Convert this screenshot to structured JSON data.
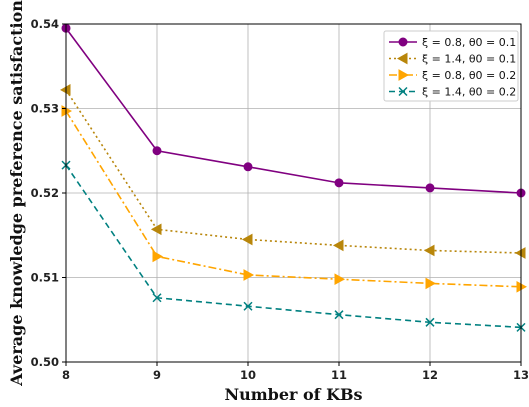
{
  "chart_data": {
    "type": "line",
    "xlabel": "Number of KBs",
    "ylabel": "Average knowledge preference satisfaction",
    "x": [
      8,
      9,
      10,
      11,
      12,
      13
    ],
    "xlim": [
      8,
      13
    ],
    "ylim": [
      0.5,
      0.54
    ],
    "xticks": [
      "8",
      "9",
      "10",
      "11",
      "12",
      "13"
    ],
    "yticks": [
      "0.50",
      "0.51",
      "0.52",
      "0.53",
      "0.54"
    ],
    "grid": true,
    "legend_position": "top-right",
    "series": [
      {
        "name": "ξ = 0.8, θ0 = 0.1",
        "values": [
          0.5395,
          0.525,
          0.5231,
          0.5212,
          0.5206,
          0.52
        ],
        "color": "#800080",
        "marker": "circle",
        "dash": "solid"
      },
      {
        "name": "ξ = 1.4, θ0 = 0.1",
        "values": [
          0.5322,
          0.5157,
          0.5145,
          0.5138,
          0.5132,
          0.5129
        ],
        "color": "#b8860b",
        "marker": "triangle-left",
        "dash": "dotted"
      },
      {
        "name": "ξ = 0.8, θ0 = 0.2",
        "values": [
          0.5297,
          0.5125,
          0.5103,
          0.5098,
          0.5093,
          0.5089
        ],
        "color": "#ffa500",
        "marker": "triangle-right",
        "dash": "dashdot"
      },
      {
        "name": "ξ = 1.4, θ0 = 0.2",
        "values": [
          0.5233,
          0.5076,
          0.5066,
          0.5056,
          0.5047,
          0.5041
        ],
        "color": "#008080",
        "marker": "x",
        "dash": "dashed"
      }
    ]
  }
}
